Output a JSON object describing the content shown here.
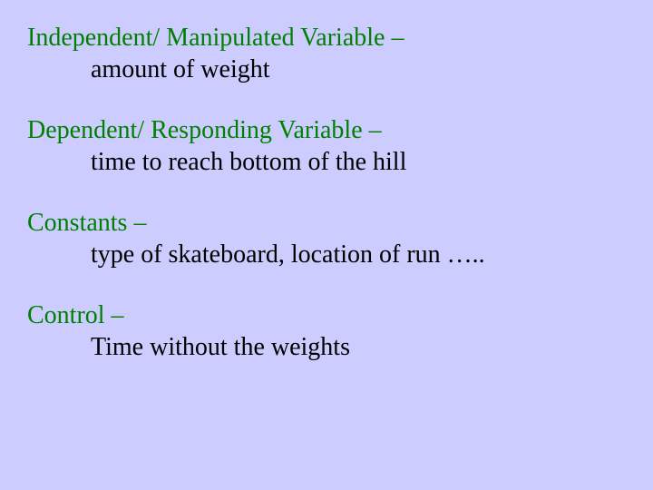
{
  "colors": {
    "background": "#ccccff",
    "label_color": "#008000",
    "text_color": "#000000"
  },
  "typography": {
    "font_family": "Times New Roman",
    "font_size_pt": 21
  },
  "items": [
    {
      "label": "Independent/ Manipulated Variable –",
      "value": "amount of weight"
    },
    {
      "label": "Dependent/ Responding Variable –",
      "value": "time to   reach bottom of the hill"
    },
    {
      "label": "Constants –",
      "value": "type of skateboard,  location of run ….."
    },
    {
      "label": "Control –",
      "value": "Time without the weights"
    }
  ]
}
